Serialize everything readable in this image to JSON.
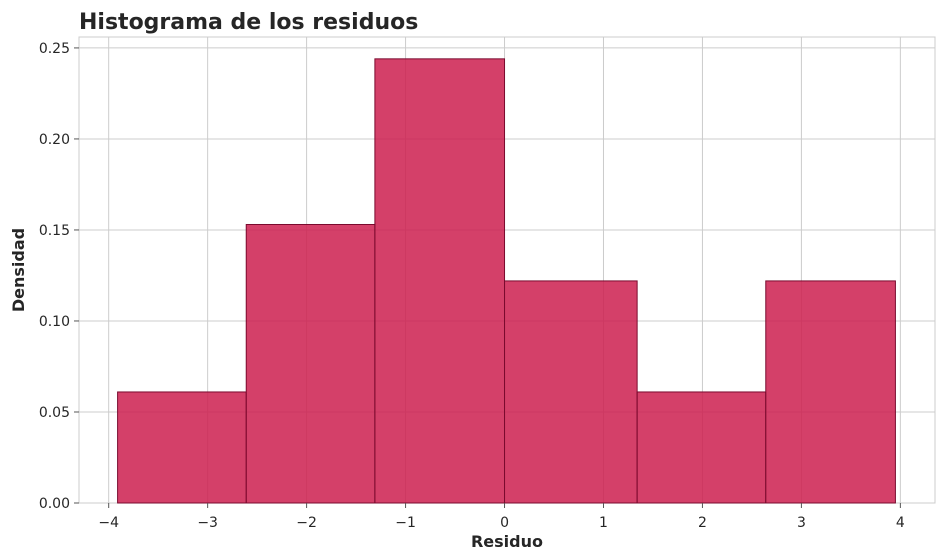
{
  "chart_data": {
    "type": "bar",
    "title": "Histograma de los residuos",
    "xlabel": "Residuo",
    "ylabel": "Densidad",
    "xlim": [
      -4.3,
      4.35
    ],
    "ylim": [
      0,
      0.256
    ],
    "grid": true,
    "bar_color": "#cc1f4f",
    "edge_color": "#7a0a2e",
    "bins": [
      {
        "x0": -3.91,
        "x1": -2.61,
        "value": 0.061
      },
      {
        "x0": -2.61,
        "x1": -1.31,
        "value": 0.153
      },
      {
        "x0": -1.31,
        "x1": 0.0,
        "value": 0.244
      },
      {
        "x0": 0.0,
        "x1": 1.34,
        "value": 0.122
      },
      {
        "x0": 1.34,
        "x1": 2.64,
        "value": 0.061
      },
      {
        "x0": 2.64,
        "x1": 3.95,
        "value": 0.122
      }
    ],
    "xticks": [
      {
        "value": -4,
        "label": "−4"
      },
      {
        "value": -3,
        "label": "−3"
      },
      {
        "value": -2,
        "label": "−2"
      },
      {
        "value": -1,
        "label": "−1"
      },
      {
        "value": 0,
        "label": "0"
      },
      {
        "value": 1,
        "label": "1"
      },
      {
        "value": 2,
        "label": "2"
      },
      {
        "value": 3,
        "label": "3"
      },
      {
        "value": 4,
        "label": "4"
      }
    ],
    "yticks": [
      {
        "value": 0.0,
        "label": "0.00"
      },
      {
        "value": 0.05,
        "label": "0.05"
      },
      {
        "value": 0.1,
        "label": "0.10"
      },
      {
        "value": 0.15,
        "label": "0.15"
      },
      {
        "value": 0.2,
        "label": "0.20"
      },
      {
        "value": 0.25,
        "label": "0.25"
      }
    ]
  }
}
